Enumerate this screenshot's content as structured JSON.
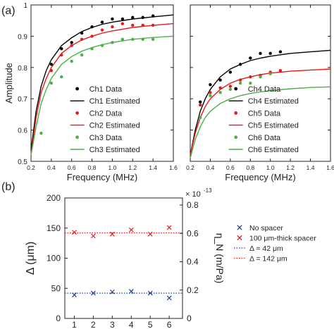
{
  "panel_labels": [
    "(a)",
    "(b)"
  ],
  "chart_data": [
    {
      "type": "scatter",
      "panel": "(a)",
      "xlabel": "Frequency (MHz)",
      "ylabel": "Amplitude",
      "xlim": [
        0.2,
        1.6
      ],
      "ylim": [
        0.5,
        1.0
      ],
      "xticks": [
        "0.2",
        "0.4",
        "0.6",
        "0.8",
        "1.0",
        "1.2",
        "1.4",
        "1.6"
      ],
      "yticks": [
        "0.5",
        "0.6",
        "0.7",
        "0.8",
        "0.9",
        "1"
      ],
      "legend_position": "bottom-right",
      "series": [
        {
          "name": "Ch1 Data",
          "kind": "points",
          "color": "#000000",
          "x": [
            0.4,
            0.5,
            0.6,
            0.7,
            0.8,
            0.9,
            1.0,
            1.1,
            1.2,
            1.3,
            1.4
          ],
          "y": [
            0.81,
            0.86,
            0.88,
            0.91,
            0.93,
            0.945,
            0.955,
            0.955,
            0.96,
            0.96,
            0.965
          ]
        },
        {
          "name": "Ch1 Estimated",
          "kind": "line",
          "color": "#000000",
          "x": [
            0.2,
            0.25,
            0.3,
            0.35,
            0.4,
            0.5,
            0.6,
            0.7,
            0.8,
            0.9,
            1.0,
            1.2,
            1.4,
            1.6
          ],
          "y": [
            0.535,
            0.66,
            0.74,
            0.79,
            0.825,
            0.87,
            0.895,
            0.915,
            0.928,
            0.938,
            0.945,
            0.955,
            0.962,
            0.968
          ]
        },
        {
          "name": "Ch2 Data",
          "kind": "points",
          "color": "#e41a1c",
          "x": [
            0.4,
            0.5,
            0.6,
            0.7,
            0.8,
            0.9,
            1.0,
            1.1,
            1.2,
            1.3,
            1.4
          ],
          "y": [
            0.79,
            0.84,
            0.87,
            0.89,
            0.9,
            0.92,
            0.93,
            0.94,
            0.935,
            0.935,
            0.935
          ]
        },
        {
          "name": "Ch2 Estimated",
          "kind": "line",
          "color": "#e41a1c",
          "x": [
            0.2,
            0.25,
            0.3,
            0.35,
            0.4,
            0.5,
            0.6,
            0.7,
            0.8,
            0.9,
            1.0,
            1.2,
            1.4,
            1.6
          ],
          "y": [
            0.52,
            0.64,
            0.72,
            0.765,
            0.8,
            0.845,
            0.87,
            0.888,
            0.9,
            0.91,
            0.917,
            0.928,
            0.935,
            0.94
          ]
        },
        {
          "name": "Ch3 Data",
          "kind": "points",
          "color": "#4daf4a",
          "x": [
            0.3,
            0.4,
            0.5,
            0.6,
            0.7,
            0.8,
            0.9,
            1.0,
            1.1,
            1.2,
            1.3,
            1.4
          ],
          "y": [
            0.59,
            0.75,
            0.77,
            0.82,
            0.84,
            0.86,
            0.87,
            0.88,
            0.89,
            0.89,
            0.89,
            0.89
          ]
        },
        {
          "name": "Ch3 Estimated",
          "kind": "line",
          "color": "#4daf4a",
          "x": [
            0.2,
            0.25,
            0.3,
            0.35,
            0.4,
            0.5,
            0.6,
            0.7,
            0.8,
            0.9,
            1.0,
            1.2,
            1.4,
            1.6
          ],
          "y": [
            0.52,
            0.61,
            0.685,
            0.73,
            0.765,
            0.81,
            0.835,
            0.852,
            0.864,
            0.873,
            0.88,
            0.89,
            0.896,
            0.9
          ]
        }
      ]
    },
    {
      "type": "scatter",
      "xlabel": "Frequency (MHz)",
      "ylabel": "",
      "xlim": [
        0.2,
        1.6
      ],
      "ylim": [
        0.5,
        1.0
      ],
      "xticks": [
        "0.2",
        "0.4",
        "0.6",
        "0.8",
        "1.0",
        "1.2",
        "1.4",
        "1.6"
      ],
      "yticks": [],
      "legend_position": "bottom-right",
      "series": [
        {
          "name": "Ch4 Data",
          "kind": "points",
          "color": "#000000",
          "x": [
            0.3,
            0.4,
            0.5,
            0.6,
            0.7,
            0.8,
            0.9,
            1.0,
            1.1
          ],
          "y": [
            0.69,
            0.745,
            0.76,
            0.785,
            0.81,
            0.83,
            0.845,
            0.845,
            0.85
          ]
        },
        {
          "name": "Ch4 Estimated",
          "kind": "line",
          "color": "#000000",
          "x": [
            0.2,
            0.25,
            0.3,
            0.35,
            0.4,
            0.5,
            0.6,
            0.7,
            0.8,
            0.9,
            1.0,
            1.2,
            1.4,
            1.6
          ],
          "y": [
            0.52,
            0.6,
            0.66,
            0.7,
            0.73,
            0.77,
            0.795,
            0.81,
            0.822,
            0.83,
            0.836,
            0.845,
            0.85,
            0.855
          ]
        },
        {
          "name": "Ch5 Data",
          "kind": "points",
          "color": "#e41a1c",
          "x": [
            0.3,
            0.4,
            0.5,
            0.6,
            0.7,
            0.8,
            0.9,
            1.0,
            1.1
          ],
          "y": [
            0.68,
            0.72,
            0.735,
            0.74,
            0.76,
            0.77,
            0.775,
            0.785,
            0.79
          ]
        },
        {
          "name": "Ch5 Estimated",
          "kind": "line",
          "color": "#e41a1c",
          "x": [
            0.2,
            0.25,
            0.3,
            0.35,
            0.4,
            0.5,
            0.6,
            0.7,
            0.8,
            0.9,
            1.0,
            1.2,
            1.4,
            1.6
          ],
          "y": [
            0.52,
            0.59,
            0.64,
            0.675,
            0.7,
            0.73,
            0.75,
            0.762,
            0.77,
            0.777,
            0.782,
            0.788,
            0.792,
            0.795
          ]
        },
        {
          "name": "Ch6 Data",
          "kind": "points",
          "color": "#4daf4a",
          "x": [
            0.3,
            0.4,
            0.5,
            0.6,
            0.7,
            0.8,
            0.9,
            1.0
          ],
          "y": [
            0.64,
            0.71,
            0.72,
            0.73,
            0.75,
            0.75,
            0.77,
            0.78
          ]
        },
        {
          "name": "Ch6 Estimated",
          "kind": "line",
          "color": "#4daf4a",
          "x": [
            0.2,
            0.25,
            0.3,
            0.35,
            0.4,
            0.5,
            0.6,
            0.7,
            0.8,
            0.9,
            1.0,
            1.2,
            1.4,
            1.6
          ],
          "y": [
            0.51,
            0.57,
            0.61,
            0.64,
            0.66,
            0.685,
            0.7,
            0.71,
            0.717,
            0.722,
            0.726,
            0.732,
            0.736,
            0.738
          ]
        }
      ]
    },
    {
      "type": "scatter",
      "panel": "(b)",
      "ylabel_left": "Δ (μm)",
      "ylabel_right": "η_N (m/Pa)",
      "right_axis_multiplier": "× 10",
      "right_axis_exponent": "-13",
      "xlim": [
        0.5,
        6.7
      ],
      "ylim_left": [
        0,
        200
      ],
      "ylim_right": [
        0,
        0.85
      ],
      "xticks": [
        "1",
        "2",
        "3",
        "4",
        "5",
        "6"
      ],
      "yticks_left": [
        "0",
        "50",
        "100",
        "150",
        "200"
      ],
      "yticks_right": [
        "0",
        "0.2",
        "0.4",
        "0.6",
        "0.8"
      ],
      "legend_position": "right",
      "series": [
        {
          "name": "No spacer",
          "marker": "x",
          "color": "#1f3f9a",
          "x": [
            1,
            2,
            3,
            4,
            5,
            6
          ],
          "y": [
            39,
            42,
            44,
            45,
            42,
            34
          ]
        },
        {
          "name": "100 μm-thick spacer",
          "marker": "x",
          "color": "#e41a1c",
          "x": [
            1,
            2,
            3,
            4,
            5,
            6
          ],
          "y": [
            143,
            137,
            140,
            147,
            140,
            151
          ]
        },
        {
          "name": "Δ = 42 μm",
          "kind": "hline",
          "color": "#1f3f9a",
          "style": "dotted",
          "y": 42
        },
        {
          "name": "Δ = 142 μm",
          "kind": "hline",
          "color": "#e41a1c",
          "style": "dotted",
          "y": 142
        }
      ]
    }
  ]
}
